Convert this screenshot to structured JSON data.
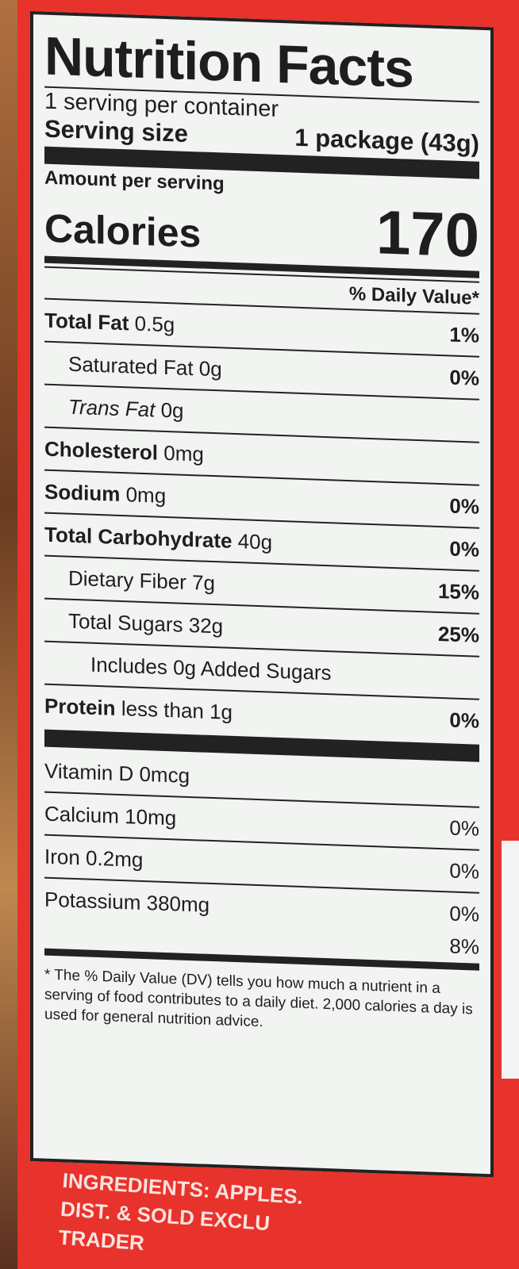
{
  "title": "Nutrition Facts",
  "servings_per_container": "1 serving per container",
  "serving_size_label": "Serving size",
  "serving_size_value": "1 package (43g)",
  "amount_per_serving": "Amount per serving",
  "calories_label": "Calories",
  "calories_value": "170",
  "dv_header": "% Daily Value*",
  "nutrients": [
    {
      "name": "Total Fat",
      "amount": "0.5g",
      "dv": "1%",
      "bold": true,
      "indent": 0
    },
    {
      "name": "Saturated Fat",
      "amount": "0g",
      "dv": "0%",
      "bold": false,
      "indent": 1
    },
    {
      "name": "Trans Fat",
      "amount": "0g",
      "dv": "",
      "bold": false,
      "indent": 1
    },
    {
      "name": "Cholesterol",
      "amount": "0mg",
      "dv": "",
      "bold": true,
      "indent": 0
    },
    {
      "name": "Sodium",
      "amount": "0mg",
      "dv": "0%",
      "bold": true,
      "indent": 0
    },
    {
      "name": "Total Carbohydrate",
      "amount": "40g",
      "dv": "0%",
      "bold": true,
      "indent": 0
    },
    {
      "name": "Dietary Fiber",
      "amount": "7g",
      "dv": "15%",
      "bold": false,
      "indent": 1
    },
    {
      "name": "Total Sugars",
      "amount": "32g",
      "dv": "25%",
      "bold": false,
      "indent": 1
    },
    {
      "name": "Includes 0g Added Sugars",
      "amount": "",
      "dv": "",
      "bold": false,
      "indent": 2
    },
    {
      "name": "Protein",
      "amount": "less than 1g",
      "dv": "0%",
      "bold": true,
      "indent": 0
    }
  ],
  "vitamins": [
    {
      "name": "Vitamin D",
      "amount": "0mcg",
      "dv": ""
    },
    {
      "name": "Calcium",
      "amount": "10mg",
      "dv": "0%"
    },
    {
      "name": "Iron",
      "amount": "0.2mg",
      "dv": "0%"
    },
    {
      "name": "Potassium",
      "amount": "380mg",
      "dv": "0%"
    }
  ],
  "last_dv": "8%",
  "footnote": "* The % Daily Value (DV) tells you how much a nutrient in a serving of food contributes to a daily diet. 2,000 calories a day is used for general nutrition advice.",
  "ingredients": "INGREDIENTS: APPLES.",
  "distributor_partial": "DIST. & SOLD EXCLU",
  "distributor_partial2": "TRADER"
}
